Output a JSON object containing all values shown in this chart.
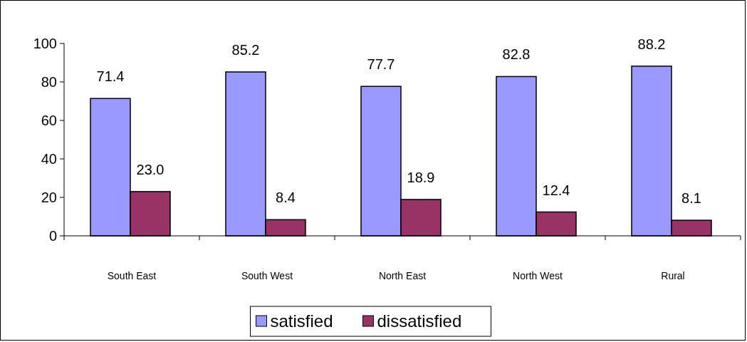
{
  "chart_data": {
    "type": "bar",
    "categories": [
      "South East",
      "South West",
      "North East",
      "North West",
      "Rural"
    ],
    "series": [
      {
        "name": "satisfied",
        "color": "#9999ff",
        "values": [
          71.4,
          85.2,
          77.7,
          82.8,
          88.2
        ],
        "value_labels": [
          "71.4",
          "85.2",
          "77.7",
          "82.8",
          "88.2"
        ]
      },
      {
        "name": "dissatisfied",
        "color": "#993366",
        "values": [
          23.0,
          8.4,
          18.9,
          12.4,
          8.1
        ],
        "value_labels": [
          "23.0",
          "8.4",
          "18.9",
          "12.4",
          "8.1"
        ]
      }
    ],
    "ylim": [
      0,
      100
    ],
    "yticks": [
      0,
      20,
      40,
      60,
      80,
      100
    ],
    "grid": false,
    "legend": "bottom"
  }
}
